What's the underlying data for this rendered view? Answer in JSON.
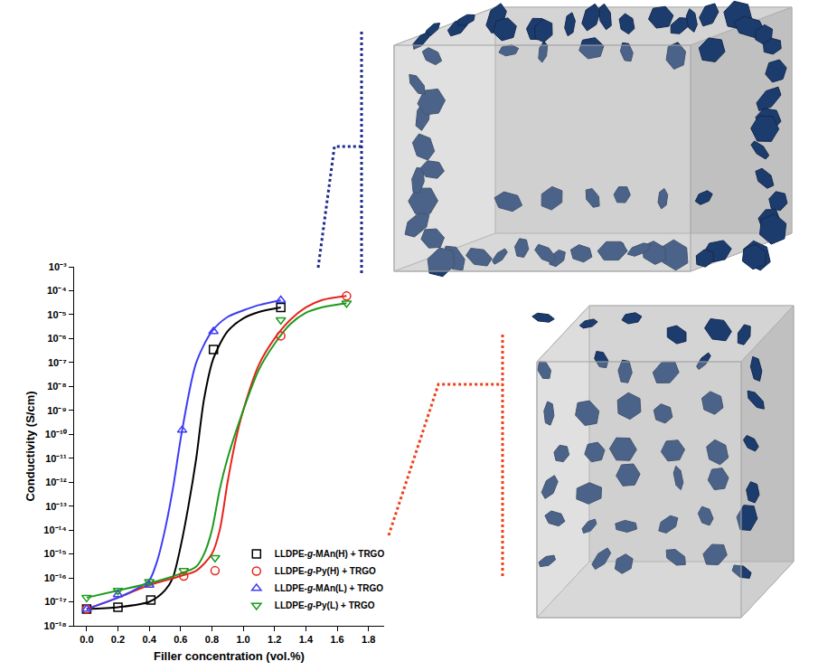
{
  "chart_data": {
    "type": "scatter",
    "x_label": "Filler concentration (vol.%)",
    "y_label": "Conductivity (S/cm)",
    "log": "y",
    "grid": false,
    "legend": "lower right",
    "xlim": [
      -0.08,
      1.9
    ],
    "xticks": [
      {
        "value": 0,
        "label": "0.0"
      },
      0.2,
      0.4,
      0.6,
      0.8,
      {
        "value": 1,
        "label": "1.0"
      },
      1.2,
      1.4,
      1.6,
      1.8
    ],
    "ylim": [
      1e-18,
      0.001
    ],
    "yticks": [
      {
        "value": 1e-18,
        "label": "10⁻¹⁸"
      },
      {
        "value": 1e-17,
        "label": "10⁻¹⁷"
      },
      {
        "value": 1e-16,
        "label": "10⁻¹⁶"
      },
      {
        "value": 1e-15,
        "label": "10⁻¹⁵"
      },
      {
        "value": 1e-14,
        "label": "10⁻¹⁴"
      },
      {
        "value": 1e-13,
        "label": "10⁻¹³"
      },
      {
        "value": 1e-12,
        "label": "10⁻¹²"
      },
      {
        "value": 1e-11,
        "label": "10⁻¹¹"
      },
      {
        "value": 1e-10,
        "label": "10⁻¹⁰"
      },
      {
        "value": 1e-09,
        "label": "10⁻⁹"
      },
      {
        "value": 1e-08,
        "label": "10⁻⁸"
      },
      {
        "value": 1e-07,
        "label": "10⁻⁷"
      },
      {
        "value": 1e-06,
        "label": "10⁻⁶"
      },
      {
        "value": 1e-05,
        "label": "10⁻⁵"
      },
      {
        "value": 0.0001,
        "label": "10⁻⁴"
      },
      {
        "value": 0.001,
        "label": "10⁻³"
      }
    ],
    "series": [
      {
        "name": "LLDPE-g-MAn(H) + TRGO",
        "color": "#000000",
        "marker": "square-open",
        "line_style": "solid",
        "x": [
          0,
          0.2,
          0.41,
          0.81,
          1.24
        ],
        "values": [
          5e-18,
          6e-18,
          1.2e-17,
          3.5e-07,
          2e-05
        ],
        "curve_x": [
          0,
          0.2,
          0.4,
          0.5,
          0.55,
          0.6,
          0.65,
          0.7,
          0.75,
          0.81,
          0.9,
          1.0,
          1.1,
          1.24
        ],
        "curve_values": [
          5e-18,
          6e-18,
          1e-17,
          3e-17,
          1e-16,
          2e-15,
          1e-13,
          1e-11,
          3e-09,
          1.5e-07,
          2e-06,
          7e-06,
          1.3e-05,
          2e-05
        ]
      },
      {
        "name": "LLDPE-g-Py(H) + TRGO",
        "color": "#e8231a",
        "marker": "circle-open",
        "line_style": "solid",
        "x": [
          0,
          0.62,
          0.82,
          1.24,
          1.66
        ],
        "values": [
          5e-18,
          1.2e-16,
          2e-16,
          1.3e-06,
          6e-05
        ],
        "curve_x": [
          0,
          0.2,
          0.4,
          0.6,
          0.7,
          0.8,
          0.85,
          0.9,
          0.95,
          1.0,
          1.1,
          1.2,
          1.3,
          1.4,
          1.5,
          1.66
        ],
        "curve_values": [
          5e-18,
          1.5e-17,
          5e-17,
          1.2e-16,
          2e-16,
          1e-15,
          1e-14,
          1e-12,
          5e-11,
          1e-09,
          8e-08,
          1e-06,
          6e-06,
          2e-05,
          4e-05,
          6e-05
        ]
      },
      {
        "name": "LLDPE-g-MAn(L) + TRGO",
        "color": "#3d3df5",
        "marker": "triangle-up-open",
        "line_style": "solid",
        "x": [
          0,
          0.2,
          0.4,
          0.61,
          0.81,
          1.24
        ],
        "values": [
          5e-18,
          2e-17,
          5e-17,
          1.5e-10,
          2e-06,
          4e-05
        ],
        "curve_x": [
          0,
          0.2,
          0.3,
          0.4,
          0.45,
          0.5,
          0.55,
          0.61,
          0.7,
          0.8,
          0.9,
          1.0,
          1.1,
          1.24
        ],
        "curve_values": [
          5e-18,
          1.5e-17,
          3e-17,
          8e-17,
          5e-16,
          1e-14,
          5e-13,
          1.5e-10,
          1e-07,
          2e-06,
          8e-06,
          1.5e-05,
          2.5e-05,
          4e-05
        ]
      },
      {
        "name": "LLDPE-g-Py(L) + TRGO",
        "color": "#1d9a1d",
        "marker": "triangle-down-open",
        "line_style": "solid",
        "x": [
          0,
          0.2,
          0.4,
          0.62,
          0.82,
          1.24,
          1.66
        ],
        "values": [
          1.5e-17,
          3e-17,
          7e-17,
          2e-16,
          7e-16,
          6e-06,
          3e-05
        ],
        "curve_x": [
          0,
          0.2,
          0.4,
          0.6,
          0.7,
          0.75,
          0.8,
          0.85,
          0.9,
          1.0,
          1.1,
          1.2,
          1.3,
          1.4,
          1.5,
          1.66
        ],
        "curve_values": [
          1.5e-17,
          3e-17,
          6e-17,
          1.5e-16,
          3e-16,
          1e-15,
          1e-14,
          5e-13,
          1e-11,
          1e-09,
          5e-08,
          6e-07,
          4e-06,
          1.2e-05,
          2e-05,
          3e-05
        ]
      }
    ]
  }
}
